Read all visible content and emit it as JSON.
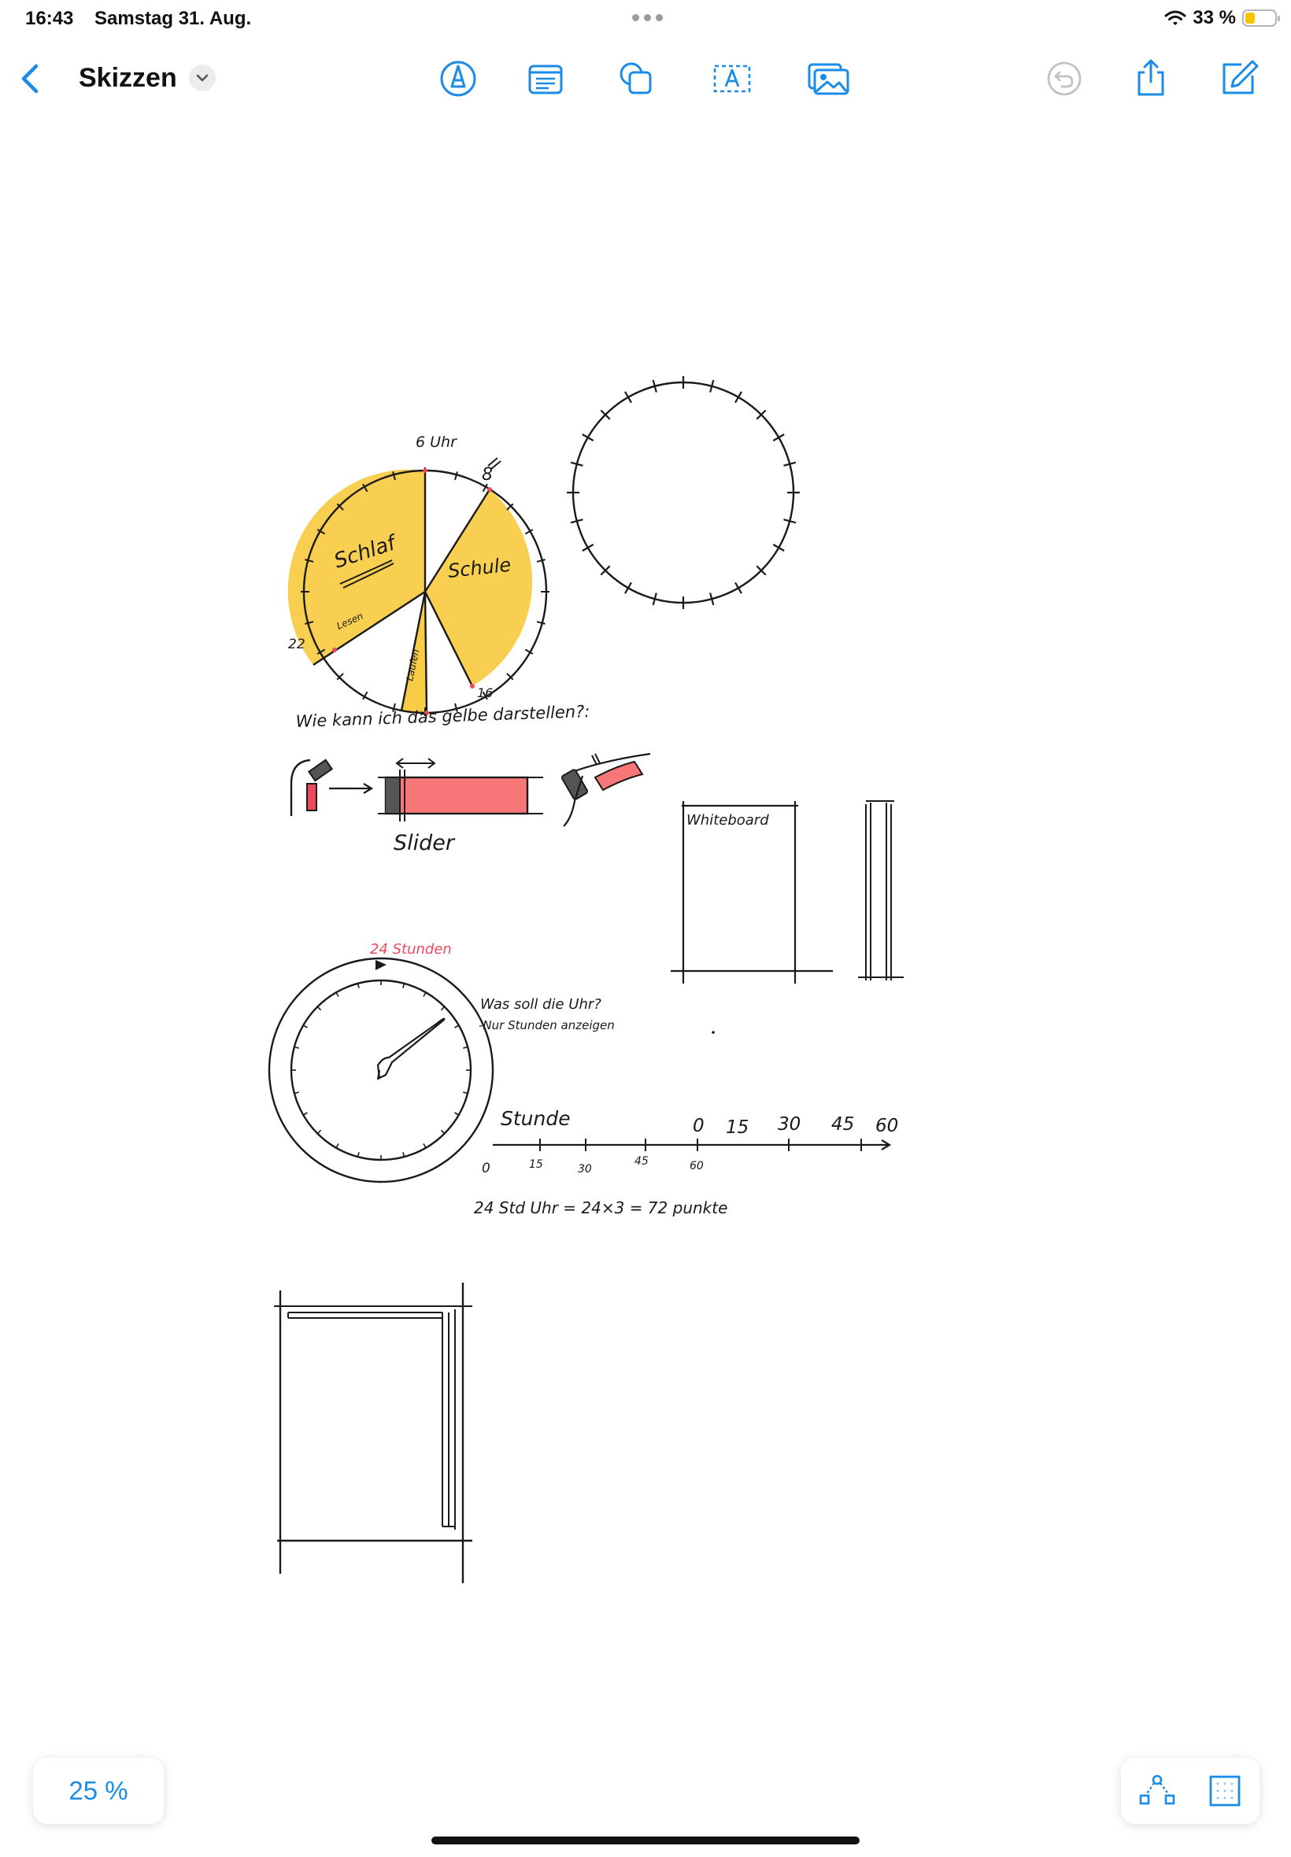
{
  "status_bar": {
    "time": "16:43",
    "date": "Samstag 31. Aug.",
    "battery": "33 %",
    "battery_level_percent": 33
  },
  "nav": {
    "title": "Skizzen"
  },
  "bottom": {
    "zoom": "25 %"
  },
  "sketch": {
    "clock_top_label": "6 Uhr",
    "clock_label_8": "8",
    "clock_label_16": "16",
    "clock_label_22": "22",
    "segment_schlaf": "Schlaf",
    "segment_schule": "Schule",
    "segment_lesen": "Lesen",
    "segment_laufen": "Laufen",
    "question": "Wie kann ich das gelbe darstellen?:",
    "slider_label": "Slider",
    "whiteboard_label": "Whiteboard",
    "clock2_label": "24 Stunden",
    "clock_question": "Was soll die Uhr?",
    "clock_answer": "-Nur Stunden anzeigen",
    "hour_label": "Stunde",
    "scale_top": [
      "0",
      "15",
      "30",
      "45",
      "60"
    ],
    "scale_bottom": [
      "0",
      "15",
      "30",
      "45",
      "60"
    ],
    "formula": "24 Std Uhr = 24×3 = 72 punkte"
  },
  "colors": {
    "accent": "#1a8ce8",
    "highlighter_yellow": "#f7c52a",
    "marker_red": "#ef4a5c",
    "slider_fill": "#f77677"
  }
}
